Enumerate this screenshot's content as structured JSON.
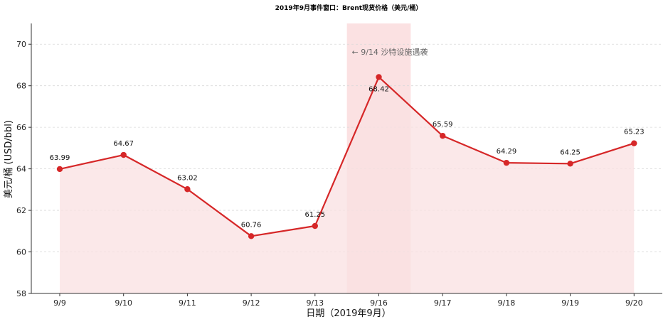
{
  "chart_data": {
    "type": "line",
    "title": "2019年9月事件窗口：Brent现货价格（美元/桶）",
    "xlabel": "日期（2019年9月）",
    "ylabel": "美元/桶 (USD/bbl)",
    "categories": [
      "9/9",
      "9/10",
      "9/11",
      "9/12",
      "9/13",
      "9/16",
      "9/17",
      "9/18",
      "9/19",
      "9/20"
    ],
    "series": [
      {
        "values": [
          63.99,
          64.67,
          63.02,
          60.76,
          61.25,
          68.42,
          65.59,
          64.29,
          64.25,
          65.23
        ]
      }
    ],
    "data_labels": [
      "63.99",
      "64.67",
      "63.02",
      "60.76",
      "61.25",
      "68.42",
      "65.59",
      "64.29",
      "64.25",
      "65.23"
    ],
    "ylim": [
      58,
      71
    ],
    "yticks": [
      58,
      60,
      62,
      64,
      66,
      68,
      70
    ],
    "grid": "horizontal dashed",
    "highlight": {
      "category": "9/16",
      "color": "#f8c8cb"
    },
    "annotation": {
      "text": "← 9/14 沙特设施遇袭",
      "category": "9/16"
    },
    "colors": {
      "line": "#d62728",
      "fill": "#f9e0e1",
      "highlight": "#f8c8cb"
    }
  }
}
